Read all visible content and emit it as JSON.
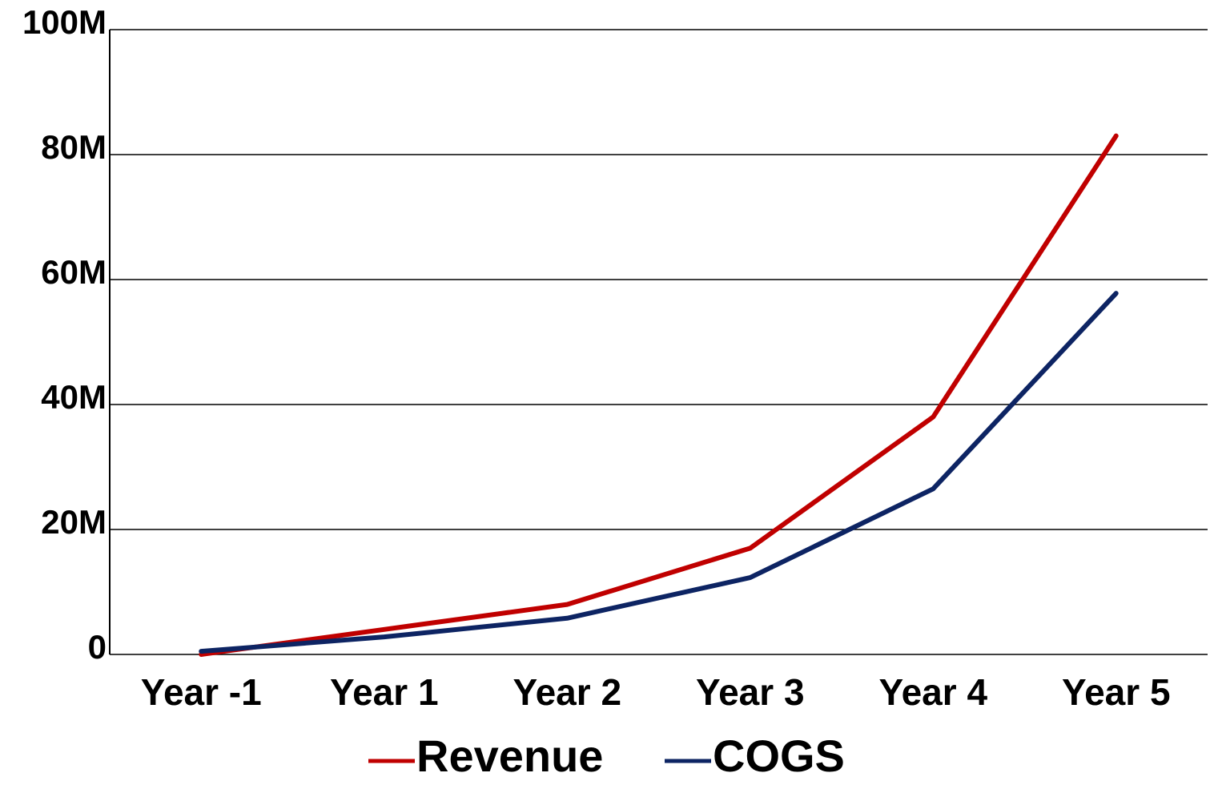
{
  "chart_data": {
    "type": "line",
    "categories": [
      "Year -1",
      "Year 1",
      "Year 2",
      "Year 3",
      "Year 4",
      "Year 5"
    ],
    "series": [
      {
        "name": "Revenue",
        "color": "#c00000",
        "values": [
          0,
          4000000,
          8000000,
          17000000,
          38000000,
          83000000
        ]
      },
      {
        "name": "COGS",
        "color": "#0d2463",
        "values": [
          500000,
          2800000,
          5800000,
          12300000,
          26500000,
          57800000
        ]
      }
    ],
    "ylim": [
      0,
      100000000
    ],
    "yticks": [
      0,
      {
        "value": 20000000,
        "label": "20M"
      },
      {
        "value": 40000000,
        "label": "40M"
      },
      {
        "value": 60000000,
        "label": "60M"
      },
      {
        "value": 80000000,
        "label": "80M"
      },
      {
        "value": 100000000,
        "label": "100M"
      }
    ],
    "grid": true,
    "legend": "bottom"
  }
}
